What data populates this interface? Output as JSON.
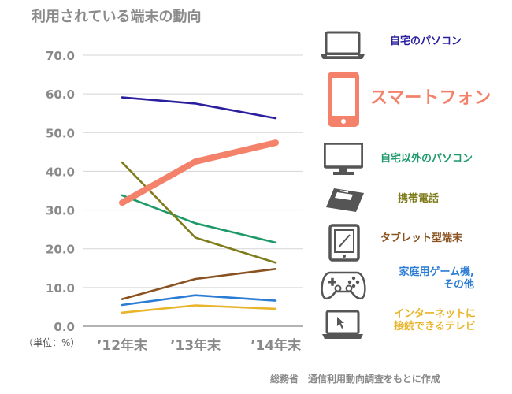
{
  "title": "利用されている端末の動向",
  "unit_label": "（単位：%）",
  "source": "総務省　通信利用動向調査をもとに作成",
  "colors": {
    "pc_home": "#2a1f9e",
    "smartphone": "#f4826a",
    "pc_outside": "#1e9a6a",
    "mobile_phone": "#7f7c1d",
    "tablet": "#8a5220",
    "game": "#2b7cd4",
    "tv": "#e8b42a",
    "axis_text": "#8a8a8a",
    "grid": "#d5d5d5",
    "icon_gray": "#555555"
  },
  "chart_data": {
    "type": "line",
    "categories": [
      "’12年末",
      "’13年末",
      "’14年末"
    ],
    "y_ticks": [
      "0.0",
      "10.0",
      "20.0",
      "30.0",
      "40.0",
      "50.0",
      "60.0",
      "70.0"
    ],
    "ylim": [
      0,
      70
    ],
    "grid": true,
    "legend_position": "right",
    "series": [
      {
        "key": "pc_home",
        "name": "自宅のパソコン",
        "values": [
          59.1,
          57.5,
          53.7
        ],
        "icon": "laptop-icon"
      },
      {
        "key": "smartphone",
        "name": "スマートフォン",
        "values": [
          31.9,
          42.5,
          47.4
        ],
        "icon": "smartphone-icon"
      },
      {
        "key": "pc_outside",
        "name": "自宅以外のパソコン",
        "values": [
          33.8,
          26.6,
          21.6
        ],
        "icon": "monitor-icon"
      },
      {
        "key": "mobile_phone",
        "name": "携帯電話",
        "values": [
          42.3,
          22.9,
          16.4
        ],
        "icon": "mobile-phone-icon"
      },
      {
        "key": "tablet",
        "name": "タブレット型端末",
        "values": [
          7.0,
          12.2,
          14.8
        ],
        "icon": "tablet-icon"
      },
      {
        "key": "game",
        "name": "家庭用ゲーム機,\nその他",
        "values": [
          5.5,
          8.0,
          6.6
        ],
        "icon": "game-controller-icon"
      },
      {
        "key": "tv",
        "name": "インターネットに\n接続できるテレビ",
        "values": [
          3.5,
          5.4,
          4.5
        ],
        "icon": "internet-tv-icon"
      }
    ]
  }
}
